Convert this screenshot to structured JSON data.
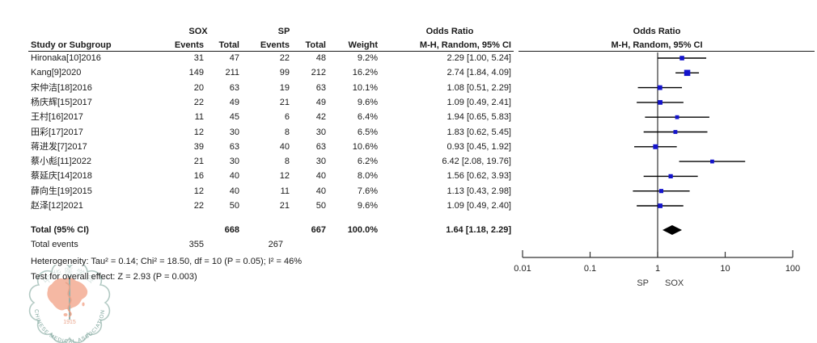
{
  "header": {
    "study_col": "Study or Subgroup",
    "group1": "SOX",
    "group2": "SP",
    "events_col": "Events",
    "total_col": "Total",
    "weight_col": "Weight",
    "or_col_title": "Odds Ratio",
    "or_col_sub": "M-H, Random, 95% CI",
    "plot_title": "Odds Ratio",
    "plot_sub": "M-H, Random, 95% CI"
  },
  "chart_data": {
    "type": "forest",
    "effect_measure": "Odds Ratio, M-H, Random, 95% CI",
    "x_axis": {
      "scale": "log",
      "ticks": [
        "0.01",
        "0.1",
        "1",
        "10",
        "100"
      ],
      "range": [
        0.01,
        100
      ],
      "left_label": "SP",
      "right_label": "SOX"
    },
    "studies": [
      {
        "label": "Hironaka[10]2016",
        "sox_events": "31",
        "sox_total": "47",
        "sp_events": "22",
        "sp_total": "48",
        "weight": "9.2%",
        "weight_val": 9.2,
        "or": 2.29,
        "ci_low": 1.0,
        "ci_high": 5.24,
        "or_text": "2.29 [1.00, 5.24]"
      },
      {
        "label": "Kang[9]2020",
        "sox_events": "149",
        "sox_total": "211",
        "sp_events": "99",
        "sp_total": "212",
        "weight": "16.2%",
        "weight_val": 16.2,
        "or": 2.74,
        "ci_low": 1.84,
        "ci_high": 4.09,
        "or_text": "2.74 [1.84, 4.09]"
      },
      {
        "label": "宋仲洁[18]2016",
        "sox_events": "20",
        "sox_total": "63",
        "sp_events": "19",
        "sp_total": "63",
        "weight": "10.1%",
        "weight_val": 10.1,
        "or": 1.08,
        "ci_low": 0.51,
        "ci_high": 2.29,
        "or_text": "1.08 [0.51, 2.29]"
      },
      {
        "label": "杨庆辉[15]2017",
        "sox_events": "22",
        "sox_total": "49",
        "sp_events": "21",
        "sp_total": "49",
        "weight": "9.6%",
        "weight_val": 9.6,
        "or": 1.09,
        "ci_low": 0.49,
        "ci_high": 2.41,
        "or_text": "1.09 [0.49, 2.41]"
      },
      {
        "label": "王村[16]2017",
        "sox_events": "11",
        "sox_total": "45",
        "sp_events": "6",
        "sp_total": "42",
        "weight": "6.4%",
        "weight_val": 6.4,
        "or": 1.94,
        "ci_low": 0.65,
        "ci_high": 5.83,
        "or_text": "1.94 [0.65, 5.83]"
      },
      {
        "label": "田彩[17]2017",
        "sox_events": "12",
        "sox_total": "30",
        "sp_events": "8",
        "sp_total": "30",
        "weight": "6.5%",
        "weight_val": 6.5,
        "or": 1.83,
        "ci_low": 0.62,
        "ci_high": 5.45,
        "or_text": "1.83 [0.62, 5.45]"
      },
      {
        "label": "蒋进发[7]2017",
        "sox_events": "39",
        "sox_total": "63",
        "sp_events": "40",
        "sp_total": "63",
        "weight": "10.6%",
        "weight_val": 10.6,
        "or": 0.93,
        "ci_low": 0.45,
        "ci_high": 1.92,
        "or_text": "0.93 [0.45, 1.92]"
      },
      {
        "label": "蔡小彪[11]2022",
        "sox_events": "21",
        "sox_total": "30",
        "sp_events": "8",
        "sp_total": "30",
        "weight": "6.2%",
        "weight_val": 6.2,
        "or": 6.42,
        "ci_low": 2.08,
        "ci_high": 19.76,
        "or_text": "6.42 [2.08, 19.76]"
      },
      {
        "label": "蔡延庆[14]2018",
        "sox_events": "16",
        "sox_total": "40",
        "sp_events": "12",
        "sp_total": "40",
        "weight": "8.0%",
        "weight_val": 8.0,
        "or": 1.56,
        "ci_low": 0.62,
        "ci_high": 3.93,
        "or_text": "1.56 [0.62, 3.93]"
      },
      {
        "label": "薛向生[19]2015",
        "sox_events": "12",
        "sox_total": "40",
        "sp_events": "11",
        "sp_total": "40",
        "weight": "7.6%",
        "weight_val": 7.6,
        "or": 1.13,
        "ci_low": 0.43,
        "ci_high": 2.98,
        "or_text": "1.13 [0.43, 2.98]"
      },
      {
        "label": "赵泽[12]2021",
        "sox_events": "22",
        "sox_total": "50",
        "sp_events": "21",
        "sp_total": "50",
        "weight": "9.6%",
        "weight_val": 9.6,
        "or": 1.09,
        "ci_low": 0.49,
        "ci_high": 2.4,
        "or_text": "1.09 [0.49, 2.40]"
      }
    ],
    "total": {
      "label": "Total (95% CI)",
      "sox_total": "668",
      "sp_total": "667",
      "weight": "100.0%",
      "or": 1.64,
      "ci_low": 1.18,
      "ci_high": 2.29,
      "or_text": "1.64 [1.18, 2.29]"
    },
    "total_events": {
      "label": "Total events",
      "sox": "355",
      "sp": "267"
    }
  },
  "footer": {
    "heterogeneity": "Heterogeneity: Tau² = 0.14; Chi² = 18.50, df = 10 (P = 0.05); I² = 46%",
    "overall_effect": "Test for overall effect: Z = 2.93 (P = 0.003)"
  },
  "watermark": {
    "arc_top": "中华医学会",
    "year": "1915",
    "arc_bottom": "CHINESE MEDICAL ASSOCIATION"
  },
  "colors": {
    "marker_blue": "#1414cc",
    "ci_line": "#000000",
    "diamond": "#000000",
    "axis": "#333333",
    "watermark_salmon": "#f2a287",
    "watermark_teal": "#7fa39b",
    "watermark_ring": "#aac4bd"
  }
}
